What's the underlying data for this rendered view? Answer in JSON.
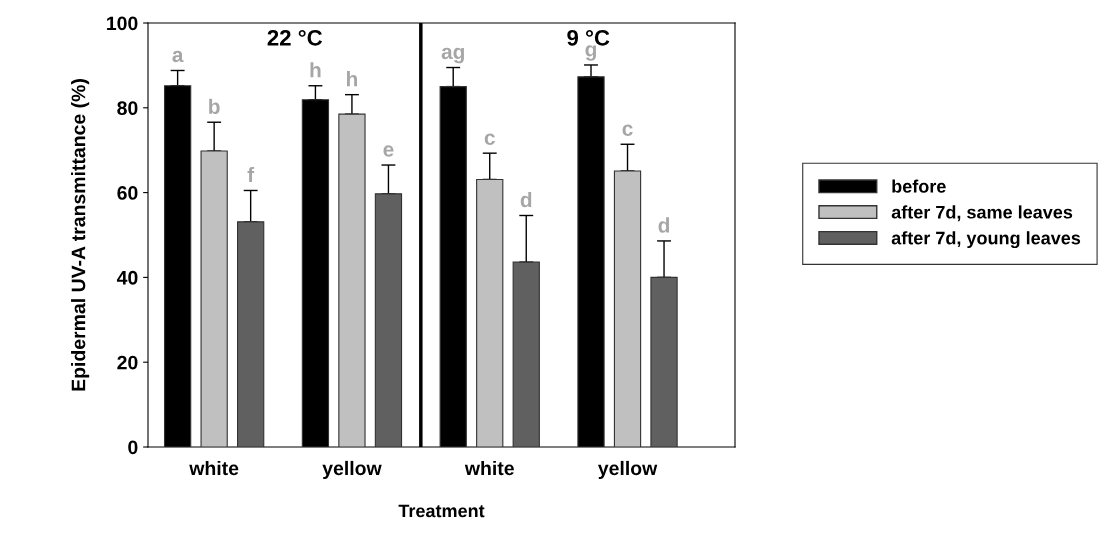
{
  "chart_data": {
    "type": "bar",
    "xlabel": "Treatment",
    "ylabel": "Epidermal UV-A transmittance (%)",
    "categories": [
      "white",
      "yellow",
      "white",
      "yellow"
    ],
    "series": [
      {
        "name": "before",
        "color": "#000000",
        "values": [
          85.2,
          81.9,
          85.0,
          87.3
        ],
        "errors": [
          [
            85.2,
            88.8
          ],
          [
            81.9,
            85.2
          ],
          [
            85.0,
            89.5
          ],
          [
            87.3,
            90.1
          ]
        ],
        "value_labels": [
          "a",
          "h",
          "ag",
          "g"
        ]
      },
      {
        "name": "after 7d, same leaves",
        "color": "#c0c0c0",
        "values": [
          69.8,
          78.5,
          63.1,
          65.1
        ],
        "errors": [
          [
            69.8,
            76.6
          ],
          [
            78.5,
            83.1
          ],
          [
            63.1,
            69.3
          ],
          [
            65.1,
            71.4
          ]
        ],
        "value_labels": [
          "b",
          "h",
          "c",
          "c"
        ]
      },
      {
        "name": "after 7d, young leaves",
        "color": "#606060",
        "values": [
          53.1,
          59.7,
          43.6,
          40.0
        ],
        "errors": [
          [
            53.1,
            60.5
          ],
          [
            59.7,
            66.5
          ],
          [
            43.6,
            54.6
          ],
          [
            40.0,
            48.6
          ]
        ],
        "value_labels": [
          "f",
          "e",
          "d",
          "d"
        ]
      }
    ],
    "annotations": [
      "22 °C",
      "9 °C"
    ],
    "ylim": [
      0,
      100
    ],
    "yticks": [
      0,
      20,
      40,
      60,
      80,
      100
    ],
    "grid": false,
    "legend": "right"
  }
}
